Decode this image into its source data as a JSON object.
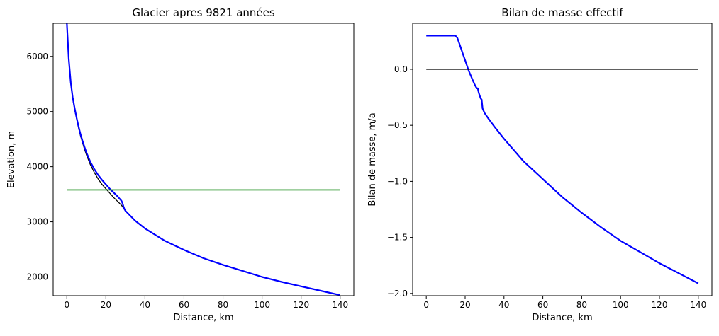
{
  "chart_data": [
    {
      "type": "line",
      "title": "Glacier apres 9821 années",
      "xlabel": "Distance, km",
      "ylabel": "Elevation, m",
      "xlim": [
        -7,
        147
      ],
      "ylim": [
        1660,
        6600
      ],
      "xticks": [
        0,
        20,
        40,
        60,
        80,
        100,
        120,
        140
      ],
      "yticks": [
        2000,
        3000,
        4000,
        5000,
        6000
      ],
      "grid": false,
      "series": [
        {
          "color": "#000000",
          "x": [
            0,
            1,
            2,
            3,
            4,
            5,
            6,
            7,
            8,
            9,
            10,
            12,
            14,
            16,
            18,
            20,
            22,
            24,
            26,
            28,
            30,
            35,
            40,
            50,
            60,
            70,
            80,
            90,
            100,
            110,
            120,
            130,
            140
          ],
          "y": [
            6600,
            5950,
            5520,
            5240,
            5040,
            4870,
            4700,
            4560,
            4440,
            4320,
            4220,
            4040,
            3900,
            3780,
            3680,
            3600,
            3520,
            3440,
            3370,
            3300,
            3200,
            3020,
            2880,
            2660,
            2490,
            2340,
            2220,
            2110,
            2000,
            1910,
            1830,
            1750,
            1670
          ]
        },
        {
          "color": "#0000ff",
          "x": [
            0,
            1,
            2,
            3,
            4,
            5,
            6,
            7,
            8,
            9,
            10,
            12,
            14,
            16,
            18,
            20,
            22,
            24,
            26,
            27,
            28,
            28.5,
            29,
            29.5,
            30,
            35,
            40,
            50,
            60,
            70,
            80,
            90,
            100,
            110,
            120,
            130,
            140
          ],
          "y": [
            6600,
            5950,
            5530,
            5260,
            5060,
            4890,
            4730,
            4590,
            4470,
            4360,
            4260,
            4090,
            3960,
            3850,
            3760,
            3680,
            3600,
            3530,
            3460,
            3420,
            3380,
            3340,
            3280,
            3230,
            3200,
            3020,
            2880,
            2660,
            2490,
            2340,
            2220,
            2110,
            2000,
            1910,
            1830,
            1750,
            1670
          ]
        },
        {
          "color": "#008000",
          "x": [
            0,
            140
          ],
          "y": [
            3580,
            3580
          ]
        }
      ]
    },
    {
      "type": "line",
      "title": "Bilan de masse effectif",
      "xlabel": "Distance, km",
      "ylabel": "Bilan de masse, m/a",
      "xlim": [
        -7,
        147
      ],
      "ylim": [
        -2.02,
        0.41
      ],
      "xticks": [
        0,
        20,
        40,
        60,
        80,
        100,
        120,
        140
      ],
      "yticks": [
        0.0,
        -0.5,
        -1.0,
        -1.5,
        -2.0
      ],
      "ytick_labels": [
        "0.0",
        "−0.5",
        "−1.0",
        "−1.5",
        "−2.0"
      ],
      "grid": false,
      "series": [
        {
          "color": "#0000ff",
          "x": [
            0,
            15,
            16,
            17,
            18,
            19,
            20,
            21,
            22,
            23,
            24,
            25,
            26,
            26.5,
            27,
            28,
            28.5,
            29,
            29.5,
            30,
            32,
            35,
            40,
            45,
            50,
            60,
            70,
            80,
            90,
            100,
            110,
            120,
            130,
            140
          ],
          "y": [
            0.3,
            0.3,
            0.28,
            0.23,
            0.18,
            0.13,
            0.08,
            0.03,
            -0.02,
            -0.06,
            -0.1,
            -0.14,
            -0.17,
            -0.17,
            -0.21,
            -0.26,
            -0.27,
            -0.35,
            -0.37,
            -0.39,
            -0.44,
            -0.51,
            -0.62,
            -0.72,
            -0.82,
            -0.98,
            -1.14,
            -1.28,
            -1.41,
            -1.53,
            -1.63,
            -1.73,
            -1.82,
            -1.91
          ]
        },
        {
          "color": "#000000",
          "x": [
            0,
            140
          ],
          "y": [
            0,
            0
          ]
        }
      ]
    }
  ]
}
